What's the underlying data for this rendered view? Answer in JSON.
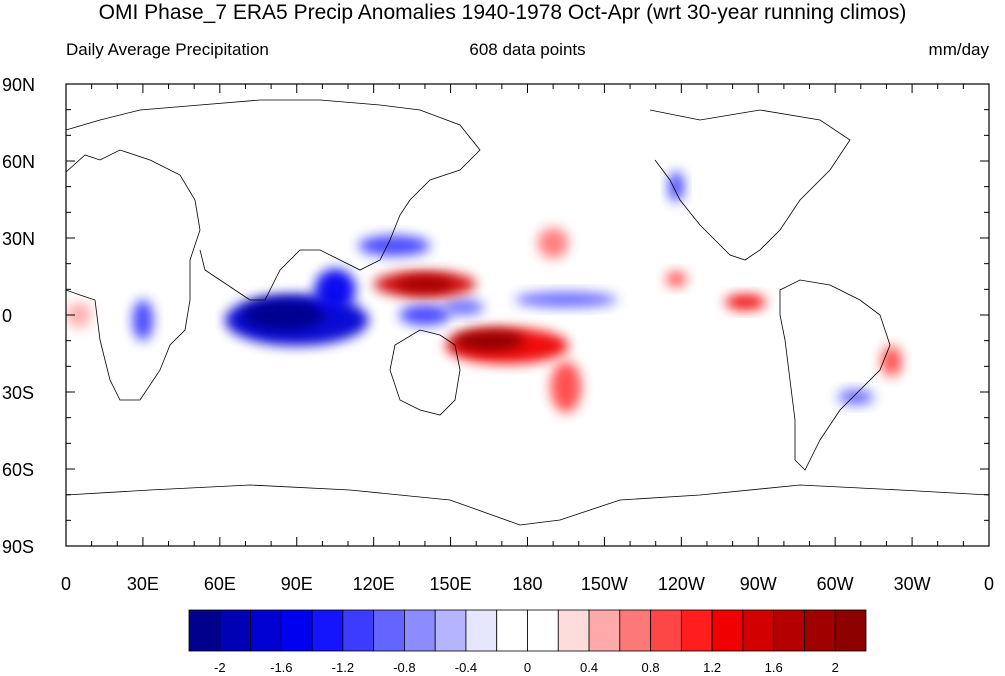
{
  "title": "OMI Phase_7 ERA5 Precip Anomalies 1940-1978 Oct-Apr (wrt 30-year running climos)",
  "left_subtitle": "Daily Average Precipitation",
  "center_subtitle": "608 data points",
  "right_subtitle": "mm/day",
  "lat_ticks": [
    "90N",
    "60N",
    "30N",
    "0",
    "30S",
    "60S",
    "90S"
  ],
  "lon_ticks": [
    "0",
    "30E",
    "60E",
    "90E",
    "120E",
    "150E",
    "180",
    "150W",
    "120W",
    "90W",
    "60W",
    "30W",
    "0"
  ],
  "colorbar": {
    "colors": [
      "#00008c",
      "#0000b4",
      "#0000d2",
      "#0000f0",
      "#1414ff",
      "#3c3cff",
      "#6464ff",
      "#8c8cff",
      "#b4b4ff",
      "#e6e6ff",
      "#ffffff",
      "#ffffff",
      "#ffdcdc",
      "#ffaaaa",
      "#ff7878",
      "#ff4646",
      "#ff1e1e",
      "#f00000",
      "#d20000",
      "#b40000",
      "#a00000",
      "#8c0000"
    ],
    "labels": [
      "-2",
      "-1.6",
      "-1.2",
      "-0.8",
      "-0.4",
      "0",
      "0.4",
      "0.8",
      "1.2",
      "1.6",
      "2"
    ]
  },
  "anomaly_blobs": [
    {
      "lon": 90,
      "lat": -2,
      "rlon": 28,
      "rlat": 10,
      "color": "#0000d2"
    },
    {
      "lon": 85,
      "lat": 0,
      "rlon": 16,
      "rlat": 6,
      "color": "#00008c"
    },
    {
      "lon": 105,
      "lat": 10,
      "rlon": 8,
      "rlat": 8,
      "color": "#0000f0"
    },
    {
      "lon": 140,
      "lat": 0,
      "rlon": 10,
      "rlat": 4,
      "color": "#3c3cff"
    },
    {
      "lon": 30,
      "lat": -2,
      "rlon": 4,
      "rlat": 8,
      "color": "#3c3cff"
    },
    {
      "lon": 128,
      "lat": 27,
      "rlon": 14,
      "rlat": 4,
      "color": "#3c3cff"
    },
    {
      "lon": 155,
      "lat": 3,
      "rlon": 8,
      "rlat": 3,
      "color": "#6464ff"
    },
    {
      "lon": 195,
      "lat": 6,
      "rlon": 20,
      "rlat": 3,
      "color": "#6464ff"
    },
    {
      "lon": 238,
      "lat": 50,
      "rlon": 3,
      "rlat": 6,
      "color": "#3c3cff"
    },
    {
      "lon": 308,
      "lat": -32,
      "rlon": 7,
      "rlat": 3,
      "color": "#6464ff"
    },
    {
      "lon": 140,
      "lat": 12,
      "rlon": 20,
      "rlat": 5,
      "color": "#d20000"
    },
    {
      "lon": 140,
      "lat": 12,
      "rlon": 11,
      "rlat": 3,
      "color": "#a00000"
    },
    {
      "lon": 172,
      "lat": -12,
      "rlon": 24,
      "rlat": 7,
      "color": "#f00000"
    },
    {
      "lon": 165,
      "lat": -10,
      "rlon": 14,
      "rlat": 4,
      "color": "#8c0000"
    },
    {
      "lon": 195,
      "lat": -28,
      "rlon": 6,
      "rlat": 10,
      "color": "#ff4646"
    },
    {
      "lon": 238,
      "lat": 14,
      "rlon": 4,
      "rlat": 3,
      "color": "#ff4646"
    },
    {
      "lon": 265,
      "lat": 5,
      "rlon": 8,
      "rlat": 3,
      "color": "#f00000"
    },
    {
      "lon": 322,
      "lat": -18,
      "rlon": 4,
      "rlat": 6,
      "color": "#ff4646"
    },
    {
      "lon": 190,
      "lat": 28,
      "rlon": 6,
      "rlat": 6,
      "color": "#ff7878"
    },
    {
      "lon": 5,
      "lat": 0,
      "rlon": 5,
      "rlat": 5,
      "color": "#ffaaaa"
    }
  ]
}
